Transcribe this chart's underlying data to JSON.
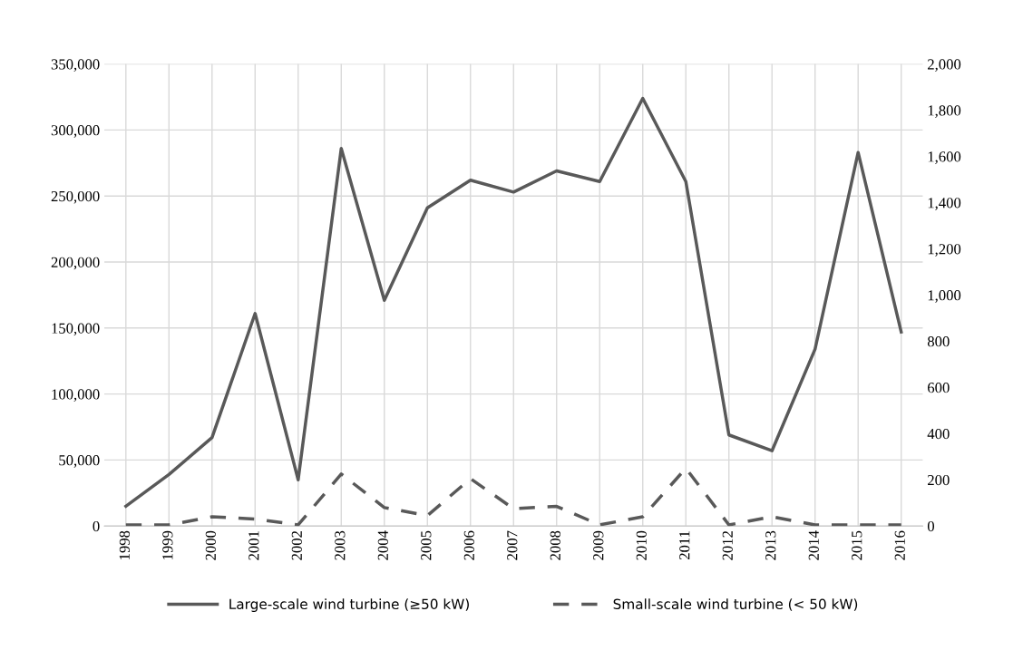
{
  "chart_data": {
    "type": "line",
    "categories": [
      "1998",
      "1999",
      "2000",
      "2001",
      "2002",
      "2003",
      "2004",
      "2005",
      "2006",
      "2007",
      "2008",
      "2009",
      "2010",
      "2011",
      "2012",
      "2013",
      "2014",
      "2015",
      "2016"
    ],
    "series": [
      {
        "name": "Large-scale wind turbine (≥50 kW)",
        "color": "#595959",
        "line_style": "solid",
        "values": [
          15000,
          39000,
          67000,
          161000,
          35000,
          286000,
          171000,
          241000,
          262000,
          253000,
          269000,
          261000,
          324000,
          261000,
          69000,
          57000,
          134000,
          283000,
          147000
        ]
      },
      {
        "name": "Small-scale wind turbine (< 50 kW)",
        "color": "#595959",
        "line_style": "dashed",
        "axis": "y2",
        "values": [
          5,
          5,
          40,
          30,
          5,
          225,
          80,
          45,
          205,
          75,
          85,
          5,
          40,
          250,
          5,
          40,
          5,
          5,
          5
        ]
      }
    ],
    "ylim": [
      0,
      350000
    ],
    "yticks": [
      0,
      {
        "value": 50000,
        "label": "50,000"
      },
      {
        "value": 100000,
        "label": "100,000"
      },
      {
        "value": 150000,
        "label": "150,000"
      },
      {
        "value": 200000,
        "label": "200,000"
      },
      {
        "value": 250000,
        "label": "250,000"
      },
      {
        "value": 300000,
        "label": "300,000"
      },
      {
        "value": 350000,
        "label": "350,000"
      }
    ],
    "y2lim": [
      0,
      2000
    ],
    "y2ticks": [
      0,
      200,
      400,
      600,
      800,
      {
        "value": 1000,
        "label": "1,000"
      },
      {
        "value": 1200,
        "label": "1,200"
      },
      {
        "value": 1400,
        "label": "1,400"
      },
      {
        "value": 1600,
        "label": "1,600"
      },
      {
        "value": 1800,
        "label": "1,800"
      },
      {
        "value": 2000,
        "label": "2,000"
      }
    ],
    "grid": true,
    "legend": "bottom",
    "marker": "none"
  }
}
